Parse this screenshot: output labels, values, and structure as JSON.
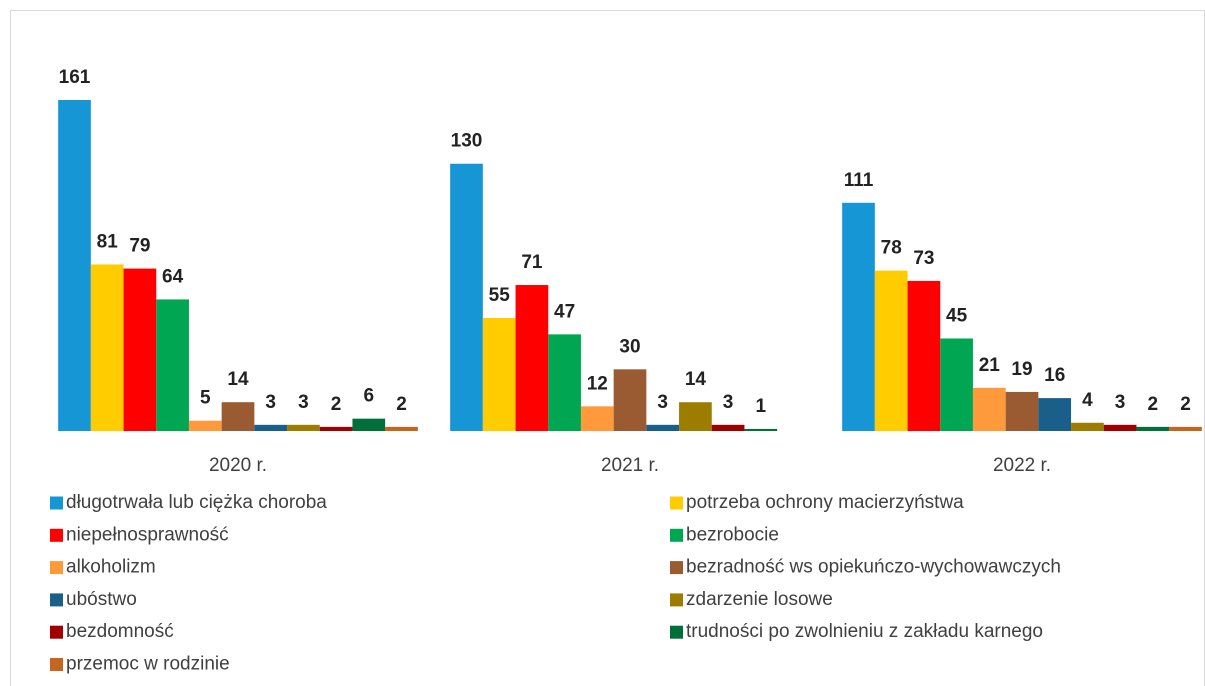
{
  "chart_data": {
    "type": "bar",
    "categories": [
      "2020 r.",
      "2021 r.",
      "2022 r."
    ],
    "series": [
      {
        "name": "długotrwała lub ciężka choroba",
        "color": "#1796d6",
        "values": [
          161,
          130,
          111
        ]
      },
      {
        "name": "potrzeba ochrony macierzyństwa",
        "color": "#ffcc00",
        "values": [
          81,
          55,
          78
        ]
      },
      {
        "name": "niepełnosprawność",
        "color": "#ff0000",
        "values": [
          79,
          71,
          73
        ]
      },
      {
        "name": "bezrobocie",
        "color": "#00a651",
        "values": [
          64,
          47,
          45
        ]
      },
      {
        "name": "alkoholizm",
        "color": "#ff9a3c",
        "values": [
          5,
          12,
          21
        ]
      },
      {
        "name": "bezradność ws opiekuńczo-wychowawczych",
        "color": "#9a5b32",
        "values": [
          14,
          30,
          19
        ]
      },
      {
        "name": "ubóstwo",
        "color": "#1a5e8a",
        "values": [
          3,
          3,
          16
        ]
      },
      {
        "name": "zdarzenie losowe",
        "color": "#9c7d00",
        "values": [
          3,
          14,
          4
        ]
      },
      {
        "name": "bezdomność",
        "color": "#a00000",
        "values": [
          2,
          3,
          3
        ]
      },
      {
        "name": "trudności po zwolnieniu z zakładu karnego",
        "color": "#006f3a",
        "values": [
          6,
          1,
          2
        ]
      },
      {
        "name": "przemoc w rodzinie",
        "color": "#c4661f",
        "values": [
          2,
          null,
          2
        ]
      }
    ]
  }
}
